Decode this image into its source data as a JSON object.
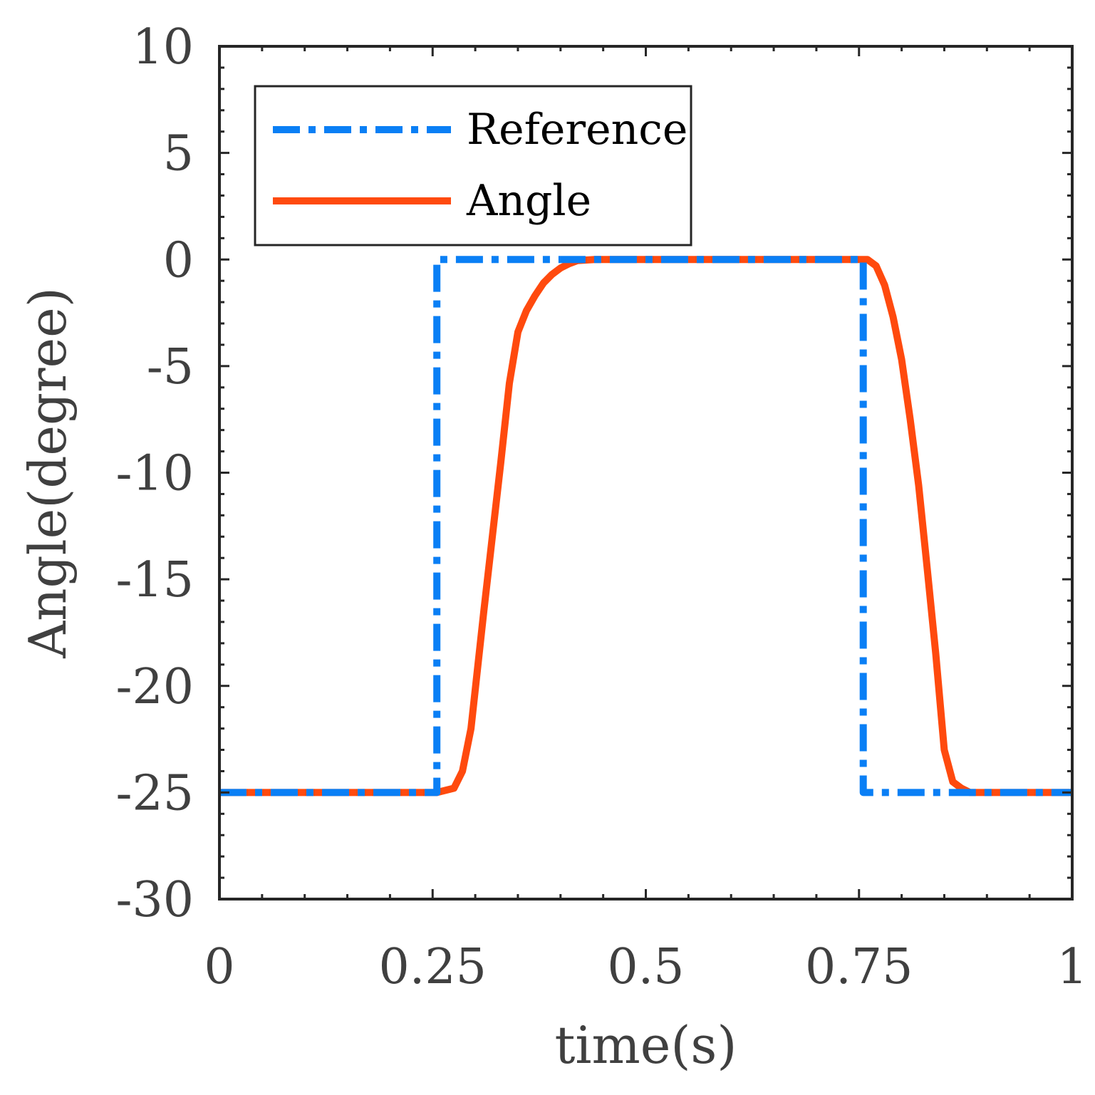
{
  "chart_data": {
    "type": "line",
    "xlabel": "time(s)",
    "ylabel": "Angle(degree)",
    "xlim": [
      0,
      1
    ],
    "ylim": [
      -30,
      10
    ],
    "xticks": [
      0,
      0.25,
      0.5,
      0.75,
      1
    ],
    "xtick_labels": [
      "0",
      "0.25",
      "0.5",
      "0.75",
      "1"
    ],
    "yticks": [
      10,
      5,
      0,
      -5,
      -10,
      -15,
      -20,
      -25,
      -30
    ],
    "ytick_labels": [
      "10",
      "5",
      "0",
      "-5",
      "-10",
      "-15",
      "-20",
      "-25",
      "-30"
    ],
    "grid": false,
    "legend_position": "top-left",
    "series": [
      {
        "name": "Reference",
        "color": "#0a7ff5",
        "style": "dash-dot",
        "x": [
          0,
          0.255,
          0.255,
          0.755,
          0.755,
          1
        ],
        "y": [
          -25,
          -25,
          0,
          0,
          -25,
          -25
        ]
      },
      {
        "name": "Angle",
        "color": "#ff4a0e",
        "style": "solid",
        "x": [
          0,
          0.255,
          0.275,
          0.285,
          0.295,
          0.31,
          0.33,
          0.34,
          0.35,
          0.36,
          0.37,
          0.38,
          0.39,
          0.4,
          0.41,
          0.42,
          0.44,
          0.46,
          0.5,
          0.6,
          0.7,
          0.76,
          0.77,
          0.78,
          0.79,
          0.8,
          0.81,
          0.82,
          0.83,
          0.84,
          0.85,
          0.86,
          0.87,
          0.88,
          0.89,
          0.9,
          1
        ],
        "y": [
          -25,
          -25,
          -24.8,
          -24.0,
          -22.0,
          -16.5,
          -9.5,
          -5.8,
          -3.4,
          -2.4,
          -1.7,
          -1.1,
          -0.7,
          -0.4,
          -0.2,
          -0.05,
          0,
          0,
          0,
          0,
          0,
          0,
          -0.3,
          -1.2,
          -2.7,
          -4.7,
          -7.5,
          -10.6,
          -14.5,
          -18.5,
          -23.0,
          -24.5,
          -24.8,
          -25,
          -25,
          -25,
          -25
        ]
      }
    ]
  }
}
